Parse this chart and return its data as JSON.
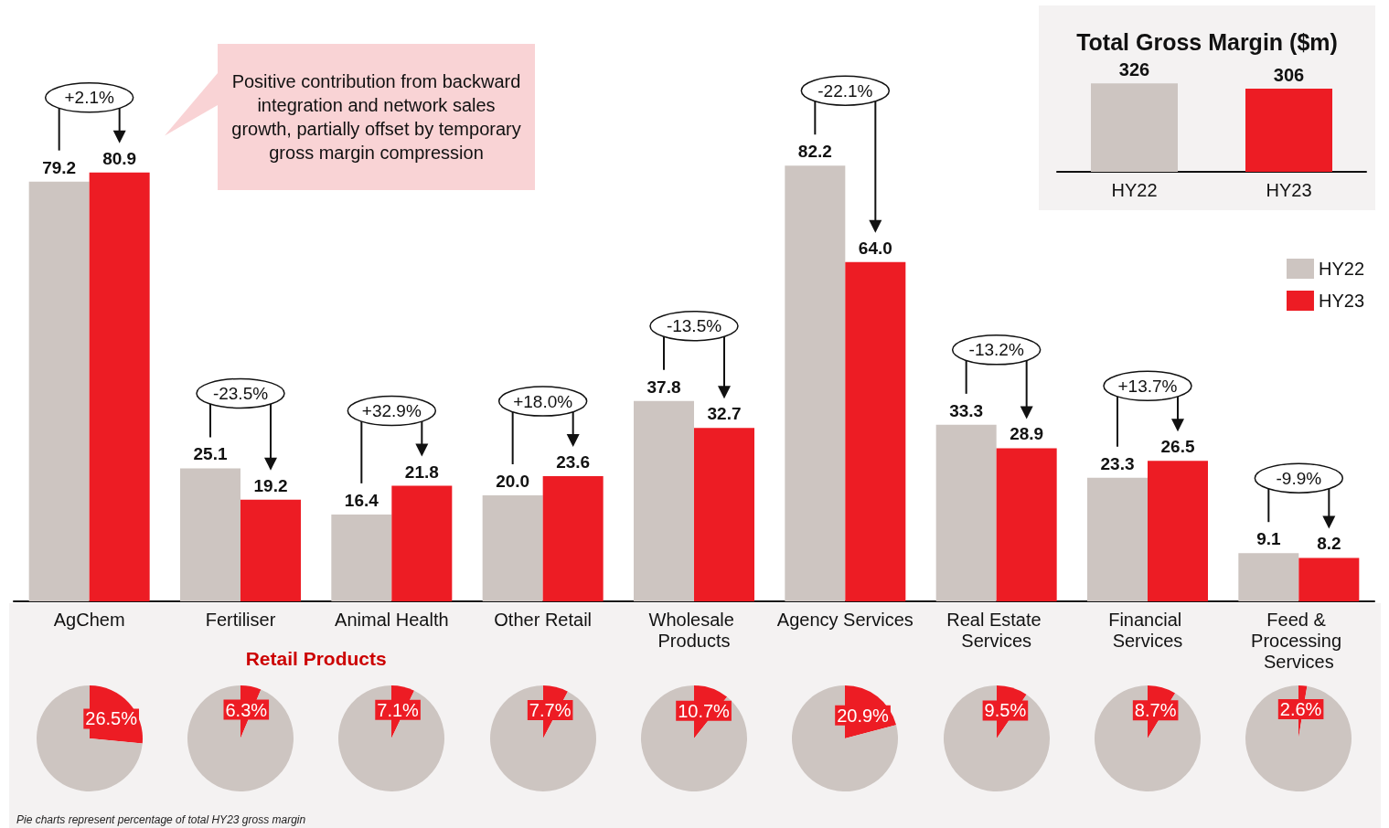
{
  "chart_data": [
    {
      "type": "bar",
      "categories": [
        "AgChem",
        "Fertiliser",
        "Animal Health",
        "Other Retail",
        "Wholesale Products",
        "Agency Services",
        "Real Estate Services",
        "Financial Services",
        "Feed & Processing Services"
      ],
      "series": [
        {
          "name": "HY22",
          "color": "#cdc5c1",
          "values": [
            79.2,
            25.1,
            16.4,
            20.0,
            37.8,
            82.2,
            33.3,
            23.3,
            9.1
          ],
          "value_labels": [
            "79.2",
            "25.1",
            "16.4",
            "20.0",
            "37.8",
            "82.2",
            "33.3",
            "23.3",
            "9.1"
          ]
        },
        {
          "name": "HY23",
          "color": "#ed1c24",
          "values": [
            80.9,
            19.2,
            21.8,
            23.6,
            32.7,
            64.0,
            28.9,
            26.5,
            8.2
          ],
          "value_labels": [
            "80.9",
            "19.2",
            "21.8",
            "23.6",
            "32.7",
            "64.0",
            "28.9",
            "26.5",
            "8.2"
          ]
        }
      ],
      "legend": "right",
      "annotations": [
        "+2.1%",
        "-23.5%",
        "+32.9%",
        "+18.0%",
        "-13.5%",
        "-22.1%",
        "-13.2%",
        "+13.7%",
        "-9.9%",
        "Positive contribution from backward integration and network sales growth, partially offset by temporary gross margin compression",
        "Retail Products",
        "Pie charts represent percentage of total HY23 gross margin"
      ]
    },
    {
      "type": "bar",
      "title": "Total Gross Margin ($m)",
      "categories": [
        "HY22",
        "HY23"
      ],
      "values": [
        326,
        306
      ],
      "colors": [
        "#cdc5c1",
        "#ed1c24"
      ],
      "data_labels": true
    },
    {
      "type": "pie",
      "categories": [
        null,
        null
      ],
      "values": [
        26.5,
        73.5
      ],
      "colors": [
        "#ed1c24",
        "#cdc5c1"
      ],
      "value_labels": [
        "26.5%",
        null
      ]
    },
    {
      "type": "pie",
      "categories": [
        null,
        null
      ],
      "values": [
        6.3,
        93.7
      ],
      "colors": [
        "#ed1c24",
        "#cdc5c1"
      ],
      "value_labels": [
        "6.3%",
        null
      ]
    },
    {
      "type": "pie",
      "categories": [
        null,
        null
      ],
      "values": [
        7.1,
        92.9
      ],
      "colors": [
        "#ed1c24",
        "#cdc5c1"
      ],
      "value_labels": [
        "7.1%",
        null
      ]
    },
    {
      "type": "pie",
      "categories": [
        null,
        null
      ],
      "values": [
        7.7,
        92.3
      ],
      "colors": [
        "#ed1c24",
        "#cdc5c1"
      ],
      "value_labels": [
        "7.7%",
        null
      ]
    },
    {
      "type": "pie",
      "categories": [
        null,
        null
      ],
      "values": [
        10.7,
        89.3
      ],
      "colors": [
        "#ed1c24",
        "#cdc5c1"
      ],
      "value_labels": [
        "10.7%",
        null
      ]
    },
    {
      "type": "pie",
      "categories": [
        null,
        null
      ],
      "values": [
        20.9,
        79.1
      ],
      "colors": [
        "#ed1c24",
        "#cdc5c1"
      ],
      "value_labels": [
        "20.9%",
        null
      ]
    },
    {
      "type": "pie",
      "categories": [
        null,
        null
      ],
      "values": [
        9.5,
        90.5
      ],
      "colors": [
        "#ed1c24",
        "#cdc5c1"
      ],
      "value_labels": [
        "9.5%",
        null
      ]
    },
    {
      "type": "pie",
      "categories": [
        null,
        null
      ],
      "values": [
        8.7,
        91.3
      ],
      "colors": [
        "#ed1c24",
        "#cdc5c1"
      ],
      "value_labels": [
        "8.7%",
        null
      ]
    },
    {
      "type": "pie",
      "categories": [
        null,
        null
      ],
      "values": [
        2.6,
        97.4
      ],
      "colors": [
        "#ed1c24",
        "#cdc5c1"
      ],
      "value_labels": [
        "2.6%",
        null
      ]
    }
  ]
}
